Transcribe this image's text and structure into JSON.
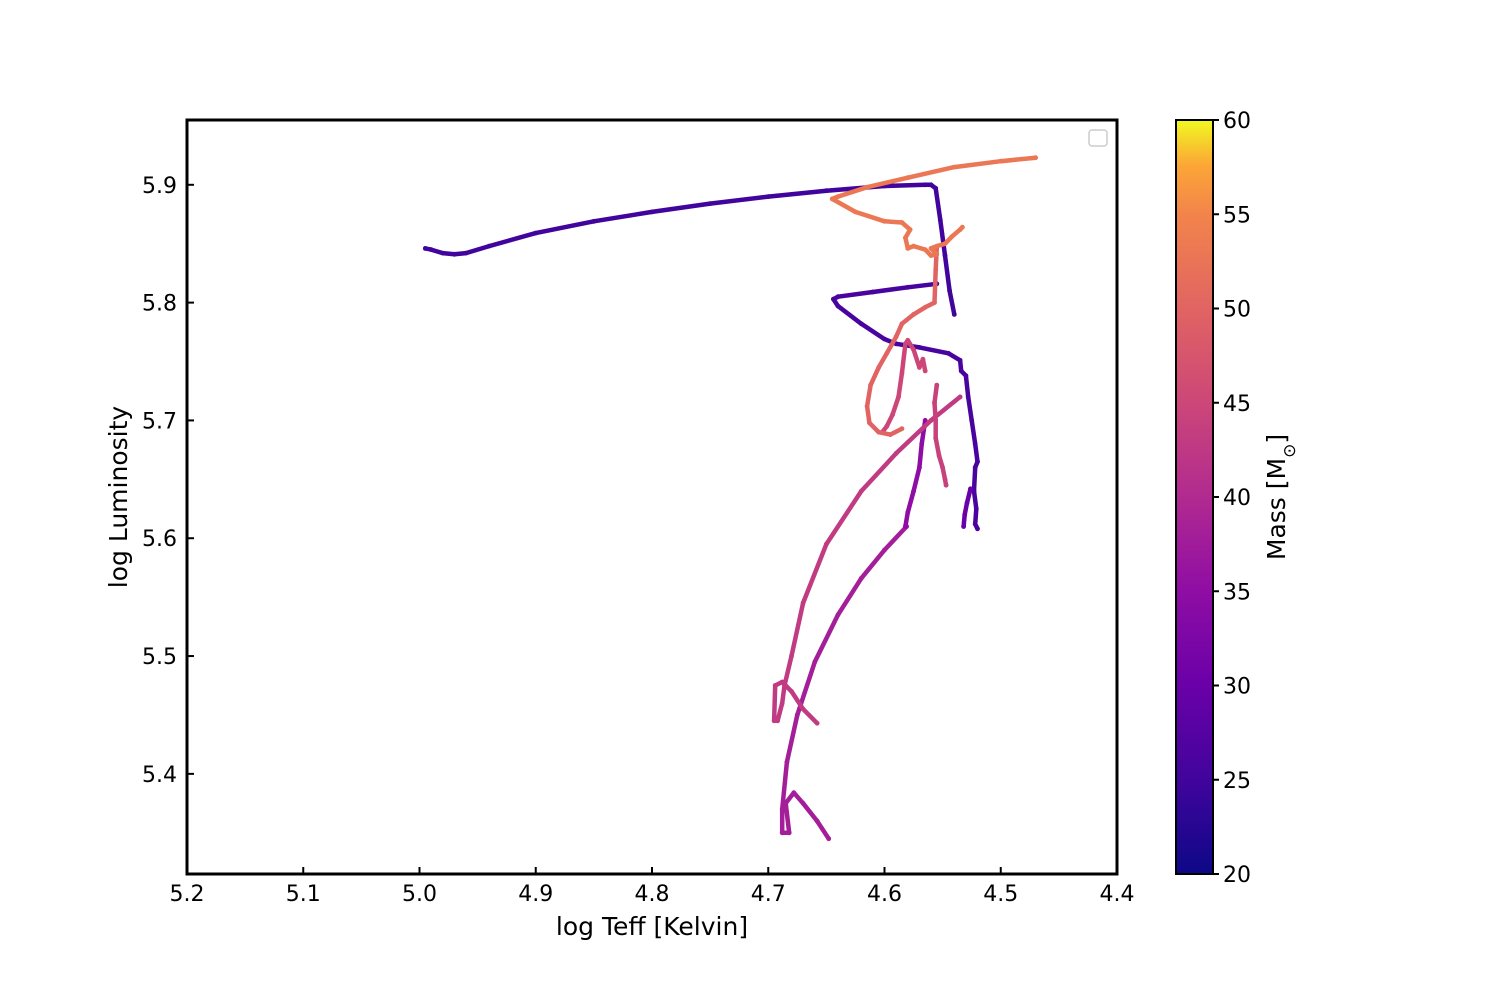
{
  "chart_data": {
    "type": "scatter",
    "title": "",
    "xlabel": "log Teff [Kelvin]",
    "ylabel": "log Luminosity",
    "xlim": [
      5.2,
      4.4
    ],
    "ylim": [
      5.315,
      5.955
    ],
    "x_inverted": true,
    "x_ticks": [
      "5.2",
      "5.1",
      "5.0",
      "4.9",
      "4.8",
      "4.7",
      "4.6",
      "4.5",
      "4.4"
    ],
    "x_tick_values": [
      5.2,
      5.1,
      5.0,
      4.9,
      4.8,
      4.7,
      4.6,
      4.5,
      4.4
    ],
    "y_ticks": [
      "5.4",
      "5.5",
      "5.6",
      "5.7",
      "5.8",
      "5.9"
    ],
    "y_tick_values": [
      5.4,
      5.5,
      5.6,
      5.7,
      5.8,
      5.9
    ],
    "grid": false,
    "legend": "top-right (empty)",
    "colormap": "plasma",
    "colorbar": {
      "label": "Mass [M",
      "label_subscript": "⊙",
      "label_close": "]",
      "range": [
        20,
        60
      ],
      "ticks": [
        "20",
        "25",
        "30",
        "35",
        "40",
        "45",
        "50",
        "55",
        "60"
      ],
      "tick_values": [
        20,
        25,
        30,
        35,
        40,
        45,
        50,
        55,
        60
      ]
    },
    "series": [
      {
        "mass": 25,
        "points": [
          [
            4.995,
            5.846
          ],
          [
            4.99,
            5.845
          ],
          [
            4.98,
            5.842
          ],
          [
            4.97,
            5.841
          ],
          [
            4.96,
            5.842
          ],
          [
            4.94,
            5.848
          ],
          [
            4.9,
            5.859
          ],
          [
            4.85,
            5.869
          ],
          [
            4.8,
            5.877
          ],
          [
            4.75,
            5.884
          ],
          [
            4.7,
            5.89
          ],
          [
            4.65,
            5.895
          ],
          [
            4.6,
            5.899
          ],
          [
            4.565,
            5.9
          ],
          [
            4.56,
            5.9
          ],
          [
            4.556,
            5.897
          ],
          [
            4.552,
            5.87
          ],
          [
            4.548,
            5.84
          ],
          [
            4.544,
            5.81
          ],
          [
            4.54,
            5.79
          ]
        ]
      },
      {
        "mass": 26,
        "points": [
          [
            4.555,
            5.816
          ],
          [
            4.58,
            5.813
          ],
          [
            4.61,
            5.809
          ],
          [
            4.64,
            5.805
          ],
          [
            4.644,
            5.803
          ],
          [
            4.64,
            5.797
          ],
          [
            4.62,
            5.782
          ],
          [
            4.6,
            5.769
          ],
          [
            4.59,
            5.765
          ],
          [
            4.57,
            5.762
          ],
          [
            4.545,
            5.757
          ],
          [
            4.535,
            5.751
          ],
          [
            4.534,
            5.742
          ],
          [
            4.53,
            5.738
          ],
          [
            4.528,
            5.72
          ],
          [
            4.525,
            5.7
          ],
          [
            4.522,
            5.68
          ],
          [
            4.52,
            5.665
          ],
          [
            4.522,
            5.66
          ],
          [
            4.523,
            5.64
          ],
          [
            4.521,
            5.625
          ],
          [
            4.522,
            5.612
          ],
          [
            4.52,
            5.608
          ]
        ]
      },
      {
        "mass": 30,
        "points": [
          [
            4.526,
            5.642
          ],
          [
            4.529,
            5.63
          ],
          [
            4.531,
            5.62
          ],
          [
            4.532,
            5.61
          ]
        ]
      },
      {
        "mass": 38,
        "points": [
          [
            4.581,
            5.61
          ],
          [
            4.6,
            5.59
          ],
          [
            4.62,
            5.566
          ],
          [
            4.64,
            5.535
          ],
          [
            4.66,
            5.495
          ],
          [
            4.675,
            5.45
          ],
          [
            4.684,
            5.41
          ],
          [
            4.688,
            5.37
          ],
          [
            4.688,
            5.35
          ],
          [
            4.682,
            5.35
          ],
          [
            4.685,
            5.375
          ],
          [
            4.678,
            5.384
          ],
          [
            4.67,
            5.375
          ],
          [
            4.658,
            5.36
          ],
          [
            4.648,
            5.345
          ]
        ]
      },
      {
        "mass": 35,
        "points": [
          [
            4.565,
            5.7
          ],
          [
            4.568,
            5.68
          ],
          [
            4.57,
            5.66
          ],
          [
            4.575,
            5.64
          ],
          [
            4.58,
            5.622
          ],
          [
            4.582,
            5.61
          ]
        ]
      },
      {
        "mass": 43,
        "points": [
          [
            4.535,
            5.72
          ],
          [
            4.56,
            5.7
          ],
          [
            4.59,
            5.672
          ],
          [
            4.62,
            5.64
          ],
          [
            4.65,
            5.595
          ],
          [
            4.67,
            5.545
          ],
          [
            4.68,
            5.5
          ],
          [
            4.686,
            5.475
          ],
          [
            4.688,
            5.46
          ],
          [
            4.692,
            5.445
          ],
          [
            4.695,
            5.445
          ],
          [
            4.694,
            5.475
          ],
          [
            4.688,
            5.478
          ],
          [
            4.68,
            5.47
          ],
          [
            4.67,
            5.455
          ],
          [
            4.658,
            5.443
          ]
        ]
      },
      {
        "mass": 45,
        "points": [
          [
            4.565,
            5.742
          ],
          [
            4.567,
            5.752
          ],
          [
            4.57,
            5.745
          ],
          [
            4.575,
            5.76
          ],
          [
            4.58,
            5.768
          ],
          [
            4.582,
            5.765
          ],
          [
            4.585,
            5.74
          ],
          [
            4.588,
            5.72
          ],
          [
            4.593,
            5.705
          ],
          [
            4.598,
            5.695
          ],
          [
            4.602,
            5.69
          ]
        ]
      },
      {
        "mass": 44,
        "points": [
          [
            4.555,
            5.73
          ],
          [
            4.557,
            5.715
          ],
          [
            4.556,
            5.7
          ],
          [
            4.556,
            5.685
          ],
          [
            4.553,
            5.67
          ],
          [
            4.55,
            5.66
          ],
          [
            4.548,
            5.65
          ],
          [
            4.547,
            5.645
          ]
        ]
      },
      {
        "mass": 50,
        "points": [
          [
            4.555,
            5.847
          ],
          [
            4.556,
            5.828
          ],
          [
            4.557,
            5.8
          ],
          [
            4.565,
            5.796
          ],
          [
            4.575,
            5.79
          ],
          [
            4.585,
            5.782
          ],
          [
            4.59,
            5.771
          ],
          [
            4.598,
            5.757
          ],
          [
            4.605,
            5.745
          ],
          [
            4.612,
            5.73
          ],
          [
            4.615,
            5.712
          ],
          [
            4.613,
            5.698
          ],
          [
            4.605,
            5.69
          ],
          [
            4.595,
            5.688
          ],
          [
            4.585,
            5.693
          ]
        ]
      },
      {
        "mass": 53,
        "points": [
          [
            4.47,
            5.923
          ],
          [
            4.5,
            5.92
          ],
          [
            4.54,
            5.915
          ],
          [
            4.58,
            5.906
          ],
          [
            4.615,
            5.898
          ],
          [
            4.64,
            5.89
          ],
          [
            4.645,
            5.888
          ],
          [
            4.625,
            5.877
          ],
          [
            4.6,
            5.869
          ],
          [
            4.585,
            5.868
          ],
          [
            4.578,
            5.862
          ],
          [
            4.582,
            5.855
          ],
          [
            4.58,
            5.846
          ],
          [
            4.575,
            5.848
          ],
          [
            4.565,
            5.845
          ],
          [
            4.56,
            5.84
          ],
          [
            4.555,
            5.841
          ],
          [
            4.56,
            5.846
          ],
          [
            4.555,
            5.848
          ],
          [
            4.548,
            5.85
          ],
          [
            4.542,
            5.856
          ],
          [
            4.535,
            5.862
          ],
          [
            4.533,
            5.864
          ]
        ]
      }
    ]
  }
}
